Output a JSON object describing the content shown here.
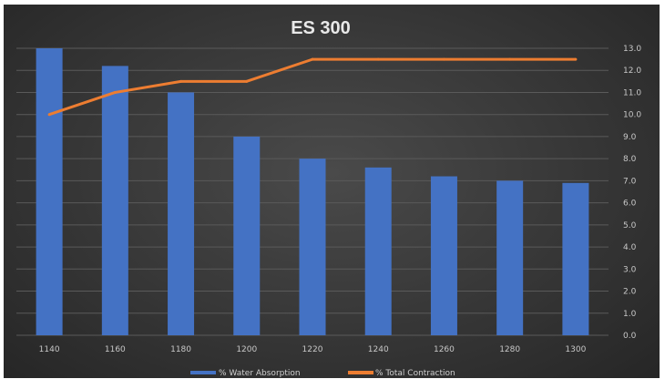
{
  "chart_data": {
    "type": "bar",
    "title": "ES 300",
    "categories": [
      "1140",
      "1160",
      "1180",
      "1200",
      "1220",
      "1240",
      "1260",
      "1280",
      "1300"
    ],
    "series": [
      {
        "name": "% Water Absorption",
        "type": "bar",
        "color": "#4472c4",
        "values": [
          13.0,
          12.2,
          11.0,
          9.0,
          8.0,
          7.6,
          7.2,
          7.0,
          6.9
        ]
      },
      {
        "name": "% Total Contraction",
        "type": "line",
        "color": "#ed7d31",
        "values": [
          10.0,
          11.0,
          11.5,
          11.5,
          12.5,
          12.5,
          12.5,
          12.5,
          12.5
        ]
      }
    ],
    "y_ticks": [
      "0.0",
      "1.0",
      "2.0",
      "3.0",
      "4.0",
      "5.0",
      "6.0",
      "7.0",
      "8.0",
      "9.0",
      "10.0",
      "11.0",
      "12.0",
      "13.0"
    ],
    "ylim": [
      0,
      13
    ],
    "y_axis_side": "right",
    "grid": true,
    "legend_position": "bottom"
  }
}
